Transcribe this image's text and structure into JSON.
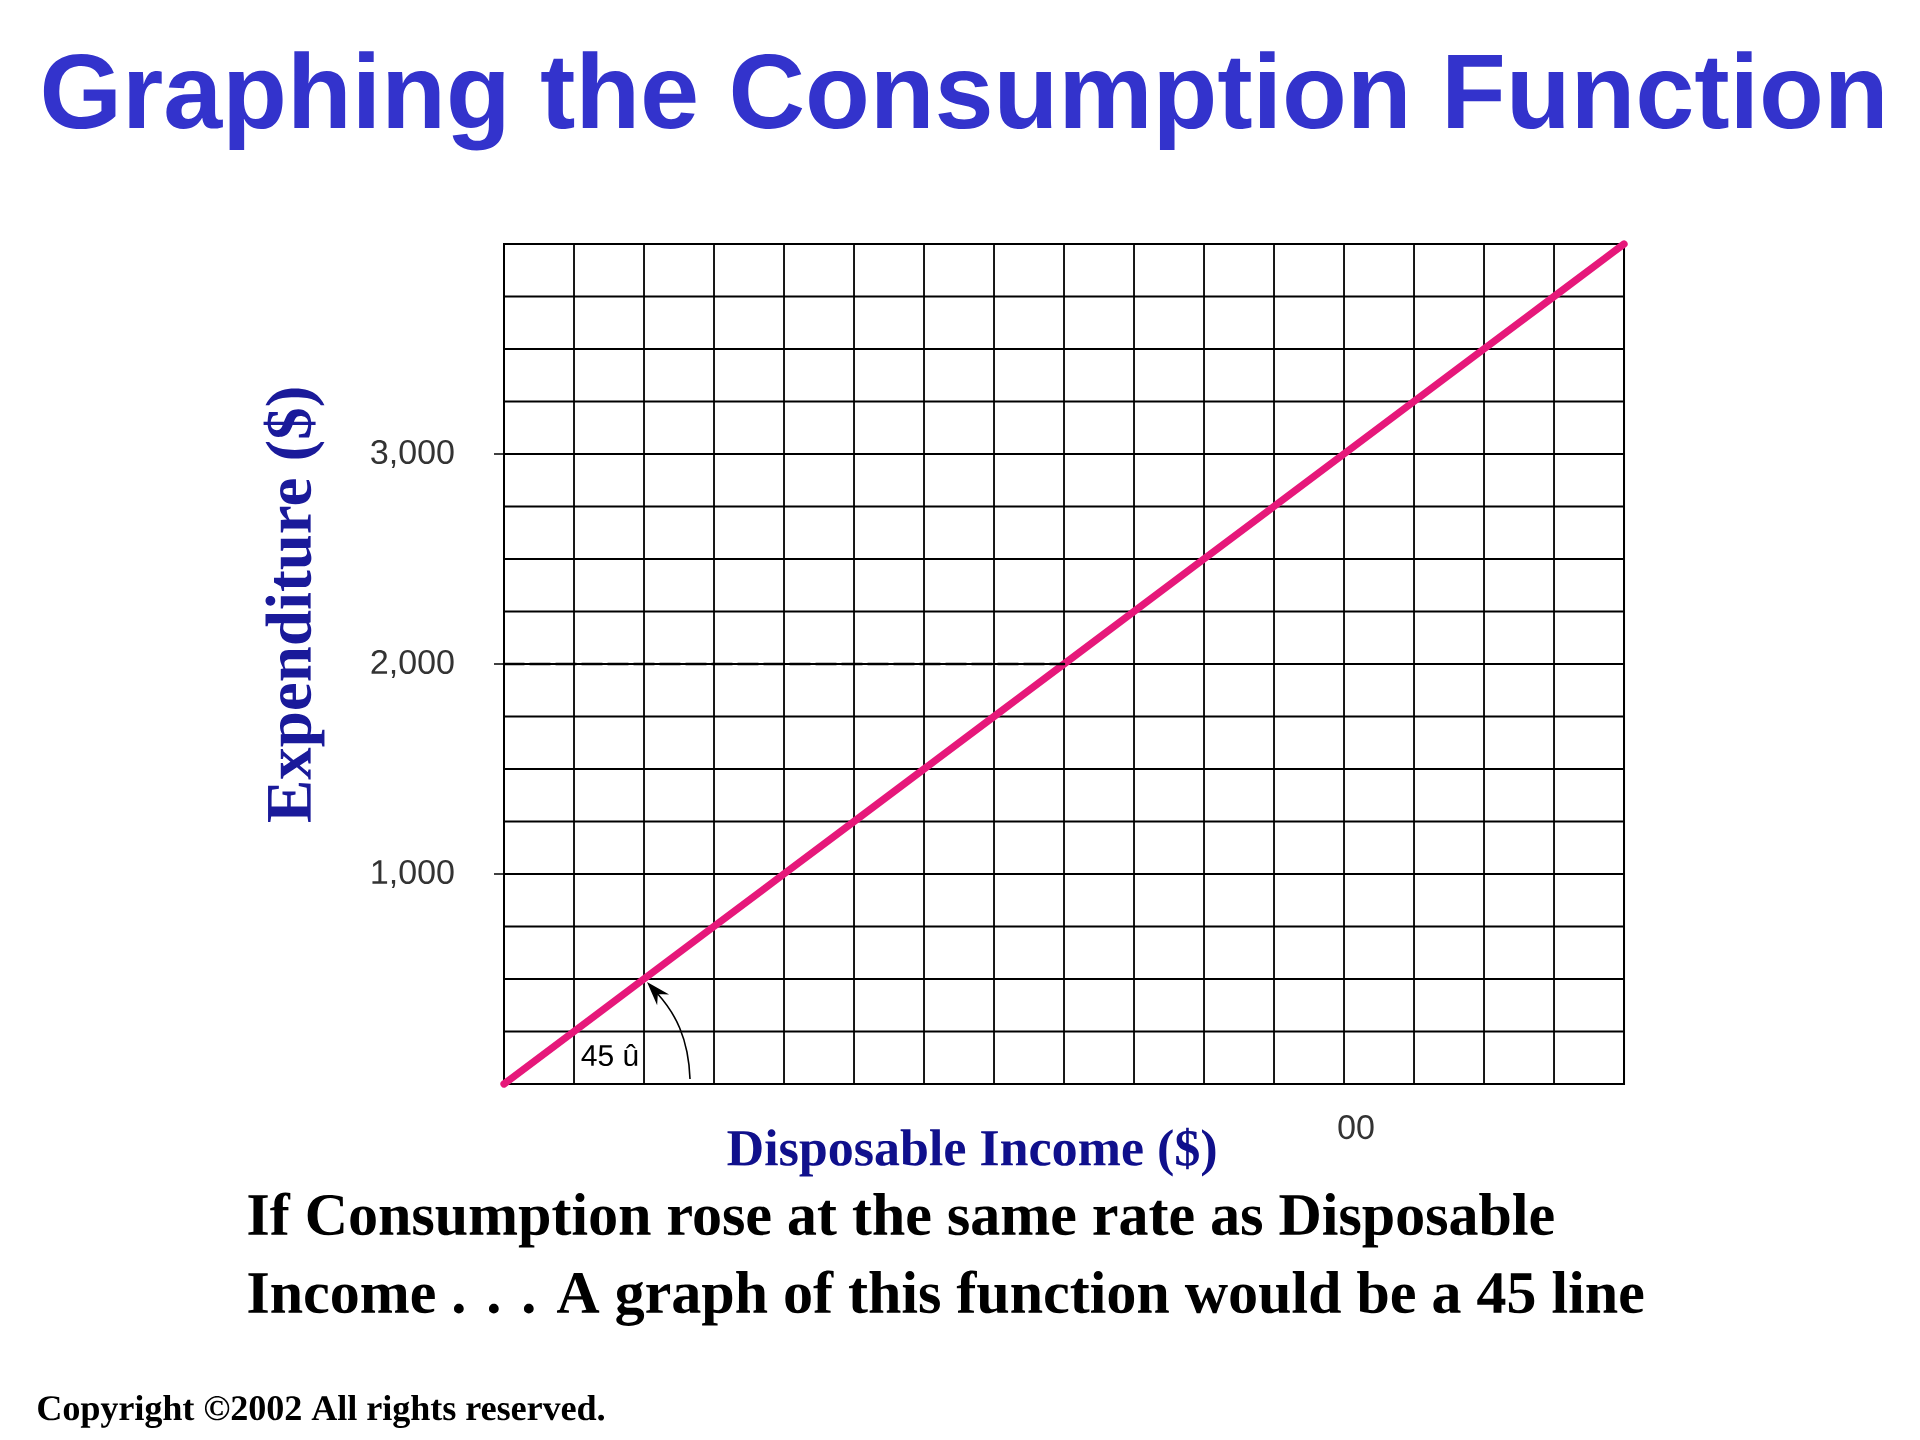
{
  "chart_data": {
    "type": "line",
    "title": "Graphing the Consumption Function",
    "xlabel": "Disposable Income ($)",
    "ylabel": "Expenditure ($)",
    "categories": [
      null,
      null,
      null,
      null,
      null,
      null,
      null,
      null,
      null,
      null,
      null,
      null,
      "00",
      null,
      null,
      null,
      null
    ],
    "series": [
      {
        "color": "#e6187a",
        "values": [
          0,
          250,
          500,
          750,
          1000,
          1250,
          1500,
          1750,
          2000,
          2250,
          2500,
          2750,
          3000,
          3250,
          3500,
          3750,
          4000
        ]
      },
      {
        "color": "#000000",
        "line_style": "dashed",
        "values": [
          2000,
          2000,
          2000,
          2000,
          2000,
          2000,
          2000,
          2000,
          2000,
          null,
          null,
          null,
          null,
          null,
          null,
          null,
          null
        ]
      }
    ],
    "ylim": [
      0,
      4000
    ],
    "yticks": [
      {
        "value": 0,
        "label": null
      },
      {
        "value": 250,
        "label": null
      },
      {
        "value": 500,
        "label": null
      },
      {
        "value": 750,
        "label": null
      },
      {
        "value": 1000,
        "label": "1,000"
      },
      {
        "value": 1250,
        "label": null
      },
      {
        "value": 1500,
        "label": null
      },
      {
        "value": 1750,
        "label": null
      },
      {
        "value": 2000,
        "label": "2,000"
      },
      {
        "value": 2250,
        "label": null
      },
      {
        "value": 2500,
        "label": null
      },
      {
        "value": 2750,
        "label": null
      },
      {
        "value": 3000,
        "label": "3,000"
      },
      {
        "value": 3250,
        "label": null
      },
      {
        "value": 3500,
        "label": null
      },
      {
        "value": 3750,
        "label": null
      },
      {
        "value": 4000,
        "label": null
      }
    ],
    "grid": true,
    "annotations": [
      "45 û",
      "If Consumption rose at the same rate as Disposable Income . . . A graph of this function would be a 45  line",
      "Copyright ©2002 All rights reserved."
    ]
  }
}
